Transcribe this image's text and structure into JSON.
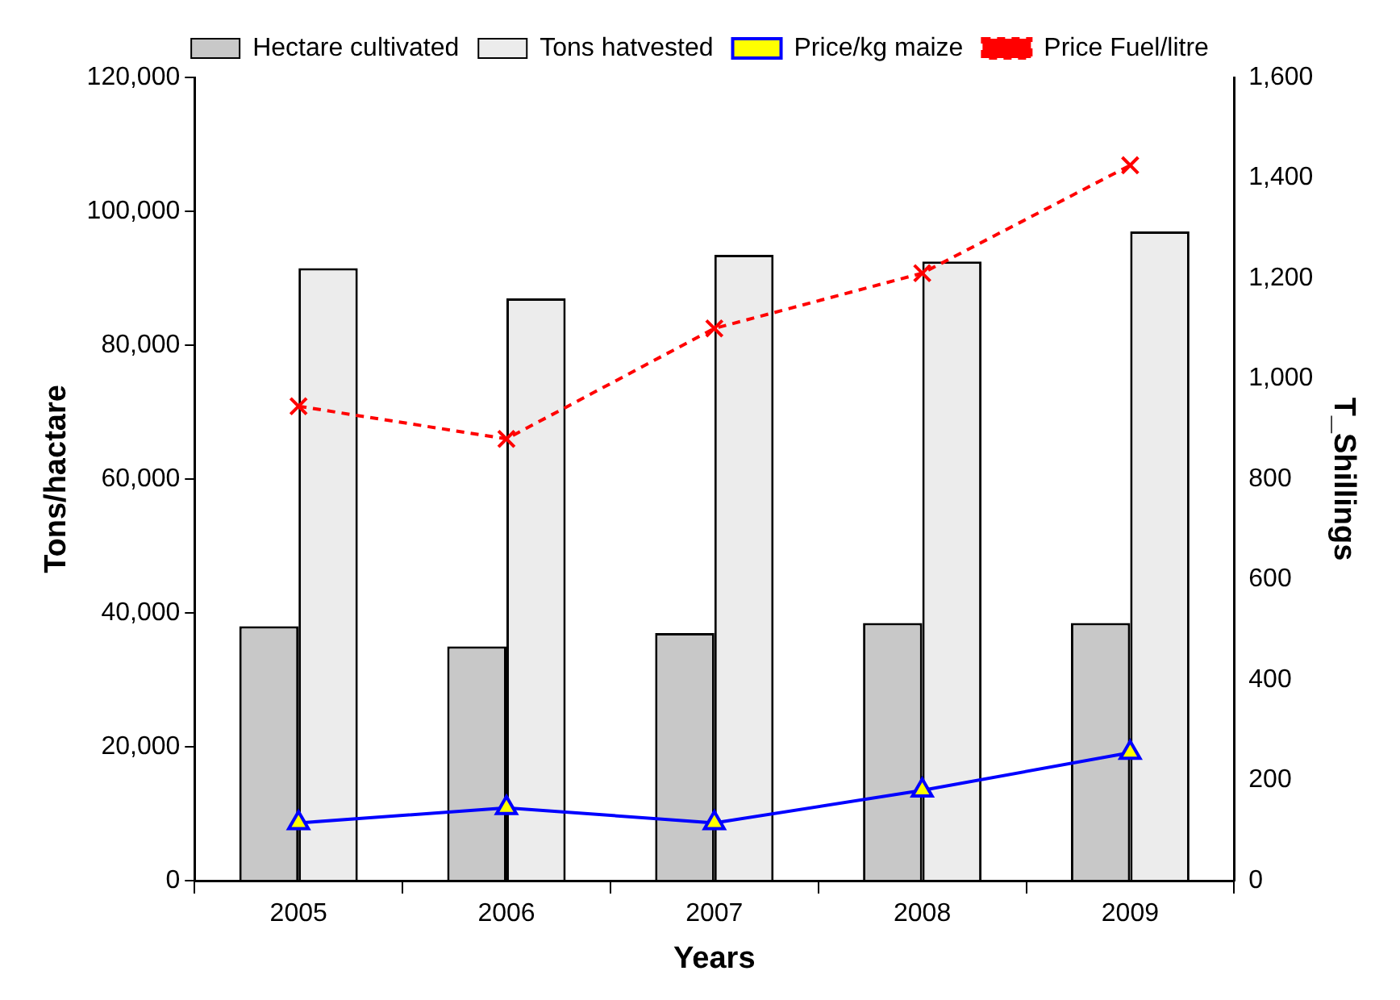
{
  "chart_data": {
    "type": "bar",
    "xlabel": "Years",
    "ylabel": "Tons/hactare",
    "y2label": "T_Shillings",
    "categories": [
      "2005",
      "2006",
      "2007",
      "2008",
      "2009"
    ],
    "series": [
      {
        "name": "Hectare cultivated",
        "color": "#c8c8c8",
        "values": [
          38000,
          35000,
          37000,
          38500,
          38500
        ]
      },
      {
        "name": "Tons hatvested",
        "color": "#ececec",
        "values": [
          91500,
          87000,
          93500,
          92500,
          97000
        ]
      },
      {
        "name": "Price/kg maize",
        "type": "line",
        "axis": "y2",
        "color": "#0000ff",
        "marker": "triangle",
        "line_style": "solid",
        "values": [
          115,
          145,
          115,
          180,
          255
        ]
      },
      {
        "name": "Price Fuel/litre",
        "type": "line",
        "axis": "y2",
        "color": "#ff0000",
        "marker": "cross",
        "line_style": "dashed",
        "values": [
          945,
          880,
          1100,
          1210,
          1425
        ]
      }
    ],
    "ylim": [
      0,
      120000
    ],
    "yticks": [
      0,
      {
        "value": 20000,
        "label": "20,000"
      },
      {
        "value": 40000,
        "label": "40,000"
      },
      {
        "value": 60000,
        "label": "60,000"
      },
      {
        "value": 80000,
        "label": "80,000"
      },
      {
        "value": 100000,
        "label": "100,000"
      },
      {
        "value": 120000,
        "label": "120,000"
      }
    ],
    "y2lim": [
      0,
      1600
    ],
    "y2ticks": [
      0,
      200,
      400,
      600,
      800,
      {
        "value": 1000,
        "label": "1,000"
      },
      {
        "value": 1200,
        "label": "1,200"
      },
      {
        "value": 1400,
        "label": "1,400"
      },
      {
        "value": 1600,
        "label": "1,600"
      }
    ],
    "grid": false,
    "legend": "top"
  }
}
